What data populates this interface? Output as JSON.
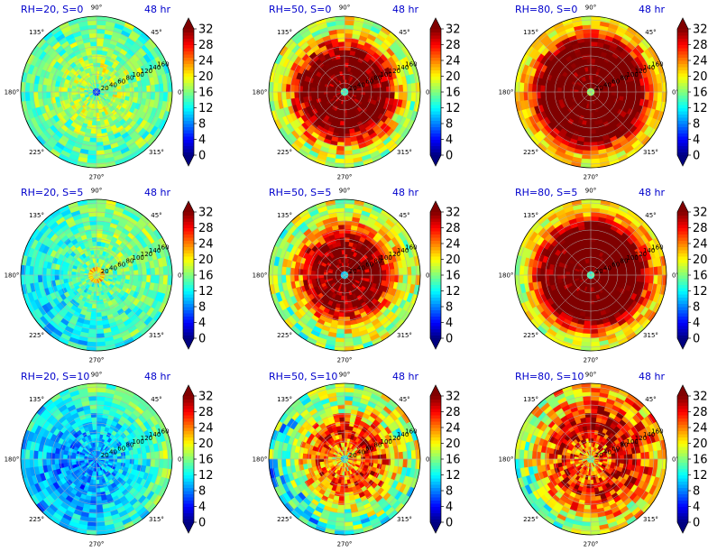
{
  "chart_data": {
    "type": "heatmap",
    "projection": "polar",
    "layout": {
      "rows": 3,
      "cols": 3
    },
    "grid": true,
    "colormap": "jet",
    "colorbar": {
      "range": [
        0,
        32
      ],
      "ticks": [
        "0",
        "4",
        "8",
        "12",
        "16",
        "20",
        "24",
        "28",
        "32"
      ],
      "extend": "both"
    },
    "angular_ticks": [
      "90°",
      "45°",
      "0°",
      "315°",
      "270°",
      "225°",
      "180°",
      "135°"
    ],
    "radial_ticks": [
      "20",
      "40",
      "60",
      "80",
      "100",
      "120",
      "140",
      "160"
    ],
    "panels": [
      {
        "title": "RH=20, S=0",
        "time": "48 hr",
        "core": 15,
        "peak": 18,
        "peak_width": 0.25,
        "outer": 15,
        "eye_value": 5,
        "eye_radius": 0.07,
        "asym": 0.0,
        "noise": 3
      },
      {
        "title": "RH=50, S=0",
        "time": "48 hr",
        "core": 34,
        "peak": 34,
        "peak_width": 0.5,
        "outer": 18,
        "eye_value": 10,
        "eye_radius": 0.07,
        "asym": 0.0,
        "noise": 4
      },
      {
        "title": "RH=80, S=0",
        "time": "48 hr",
        "core": 34,
        "peak": 34,
        "peak_width": 0.62,
        "outer": 21,
        "eye_value": 12,
        "eye_radius": 0.06,
        "asym": 0.0,
        "noise": 3
      },
      {
        "title": "RH=20, S=5",
        "time": "48 hr",
        "core": 30,
        "peak": 15,
        "peak_width": 0.12,
        "outer": 14,
        "eye_value": 6,
        "eye_radius": 0.04,
        "asym": 0.3,
        "noise": 3
      },
      {
        "title": "RH=50, S=5",
        "time": "48 hr",
        "core": 34,
        "peak": 32,
        "peak_width": 0.45,
        "outer": 17,
        "eye_value": 8,
        "eye_radius": 0.08,
        "asym": 0.15,
        "noise": 4
      },
      {
        "title": "RH=80, S=5",
        "time": "48 hr",
        "core": 34,
        "peak": 34,
        "peak_width": 0.6,
        "outer": 20,
        "eye_value": 8,
        "eye_radius": 0.06,
        "asym": 0.2,
        "noise": 3
      },
      {
        "title": "RH=20, S=10",
        "time": "48 hr",
        "core": 9,
        "peak": 10,
        "peak_width": 0.5,
        "outer": 13,
        "eye_value": 8,
        "eye_radius": 0.1,
        "asym": 0.35,
        "noise": 3
      },
      {
        "title": "RH=50, S=10",
        "time": "48 hr",
        "core": 20,
        "peak": 28,
        "peak_width": 0.35,
        "outer": 15,
        "eye_value": 10,
        "eye_radius": 0.05,
        "asym": 0.35,
        "noise": 5
      },
      {
        "title": "RH=80, S=10",
        "time": "48 hr",
        "core": 22,
        "peak": 30,
        "peak_width": 0.45,
        "outer": 20,
        "eye_value": 12,
        "eye_radius": 0.05,
        "asym": 0.4,
        "noise": 5
      }
    ]
  }
}
